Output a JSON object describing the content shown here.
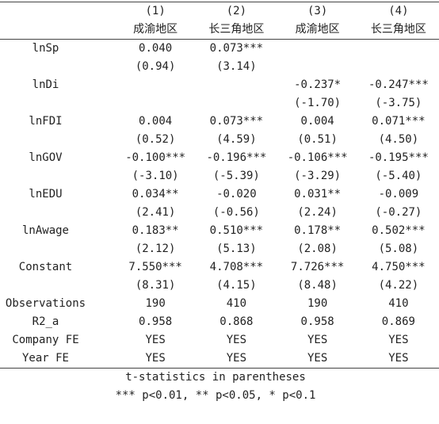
{
  "header": {
    "numbers": [
      "(1)",
      "(2)",
      "(3)",
      "(4)"
    ],
    "regions": [
      "成渝地区",
      "长三角地区",
      "成渝地区",
      "长三角地区"
    ]
  },
  "table": {
    "rows": [
      {
        "label": "lnSp",
        "coef": [
          "0.040",
          "0.073***",
          null,
          null
        ],
        "t": [
          "(0.94)",
          "(3.14)",
          null,
          null
        ]
      },
      {
        "label": "lnDi",
        "coef": [
          null,
          null,
          "-0.237*",
          "-0.247***"
        ],
        "t": [
          null,
          null,
          "(-1.70)",
          "(-3.75)"
        ]
      },
      {
        "label": "lnFDI",
        "coef": [
          "0.004",
          "0.073***",
          "0.004",
          "0.071***"
        ],
        "t": [
          "(0.52)",
          "(4.59)",
          "(0.51)",
          "(4.50)"
        ]
      },
      {
        "label": "lnGOV",
        "coef": [
          "-0.100***",
          "-0.196***",
          "-0.106***",
          "-0.195***"
        ],
        "t": [
          "(-3.10)",
          "(-5.39)",
          "(-3.29)",
          "(-5.40)"
        ]
      },
      {
        "label": "lnEDU",
        "coef": [
          "0.034**",
          "-0.020",
          "0.031**",
          "-0.009"
        ],
        "t": [
          "(2.41)",
          "(-0.56)",
          "(2.24)",
          "(-0.27)"
        ]
      },
      {
        "label": "lnAwage",
        "coef": [
          "0.183**",
          "0.510***",
          "0.178**",
          "0.502***"
        ],
        "t": [
          "(2.12)",
          "(5.13)",
          "(2.08)",
          "(5.08)"
        ]
      },
      {
        "label": "Constant",
        "coef": [
          "7.550***",
          "4.708***",
          "7.726***",
          "4.750***"
        ],
        "t": [
          "(8.31)",
          "(4.15)",
          "(8.48)",
          "(4.22)"
        ]
      }
    ],
    "stats": [
      {
        "label": "Observations",
        "values": [
          "190",
          "410",
          "190",
          "410"
        ]
      },
      {
        "label": "R2_a",
        "values": [
          "0.958",
          "0.868",
          "0.958",
          "0.869"
        ]
      },
      {
        "label": "Company FE",
        "values": [
          "YES",
          "YES",
          "YES",
          "YES"
        ]
      },
      {
        "label": "Year FE",
        "values": [
          "YES",
          "YES",
          "YES",
          "YES"
        ]
      }
    ]
  },
  "notes": [
    "t-statistics in parentheses",
    "*** p<0.01, ** p<0.05, * p<0.1"
  ]
}
